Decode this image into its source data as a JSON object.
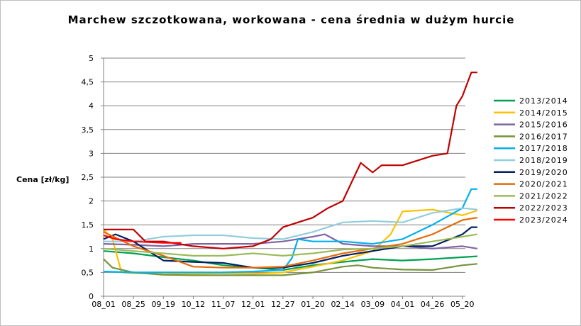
{
  "chart_data": {
    "type": "line",
    "title": "Marchew szczotkowana, workowana - cena średnia w dużym hurcie",
    "ylabel": "Cena [zł/kg]",
    "xlabel": "",
    "ylim": [
      0,
      5
    ],
    "yticks": [
      "0",
      "0,5",
      "1",
      "1,5",
      "2",
      "2,5",
      "3",
      "3,5",
      "4",
      "4,5",
      "5"
    ],
    "xticks": [
      "08_01",
      "08_25",
      "09_19",
      "10_12",
      "11_07",
      "12_01",
      "12_27",
      "01_20",
      "02_14",
      "03_09",
      "04_01",
      "04_26",
      "05_20"
    ],
    "grid": "horizontal",
    "legend_position": "right",
    "series": [
      {
        "name": "2013/2014",
        "color": "#00a050",
        "points": [
          [
            0,
            0.95
          ],
          [
            1,
            0.9
          ],
          [
            2,
            0.82
          ],
          [
            3,
            0.75
          ],
          [
            4,
            0.65
          ],
          [
            5,
            0.6
          ],
          [
            6,
            0.55
          ],
          [
            7,
            0.65
          ],
          [
            8,
            0.72
          ],
          [
            9,
            0.78
          ],
          [
            10,
            0.75
          ],
          [
            11,
            0.78
          ],
          [
            12,
            0.82
          ],
          [
            12.5,
            0.84
          ]
        ]
      },
      {
        "name": "2014/2015",
        "color": "#ffc000",
        "points": [
          [
            0,
            1.4
          ],
          [
            0.3,
            1.2
          ],
          [
            0.6,
            0.5
          ],
          [
            1,
            0.48
          ],
          [
            2,
            0.48
          ],
          [
            3,
            0.47
          ],
          [
            4,
            0.48
          ],
          [
            5,
            0.47
          ],
          [
            6,
            0.5
          ],
          [
            7,
            0.62
          ],
          [
            8,
            0.75
          ],
          [
            9,
            0.95
          ],
          [
            9.6,
            1.3
          ],
          [
            10,
            1.78
          ],
          [
            11,
            1.82
          ],
          [
            12,
            1.7
          ],
          [
            12.5,
            1.8
          ]
        ]
      },
      {
        "name": "2015/2016",
        "color": "#8064a2",
        "points": [
          [
            0,
            1.1
          ],
          [
            1,
            1.08
          ],
          [
            2,
            1.05
          ],
          [
            3,
            1.1
          ],
          [
            4,
            1.1
          ],
          [
            5,
            1.1
          ],
          [
            6,
            1.15
          ],
          [
            7,
            1.25
          ],
          [
            7.4,
            1.3
          ],
          [
            8,
            1.1
          ],
          [
            9,
            1.05
          ],
          [
            10,
            1.05
          ],
          [
            11,
            1.0
          ],
          [
            12,
            1.05
          ],
          [
            12.5,
            1.0
          ]
        ]
      },
      {
        "name": "2016/2017",
        "color": "#77933c",
        "points": [
          [
            0,
            0.78
          ],
          [
            0.3,
            0.6
          ],
          [
            1,
            0.5
          ],
          [
            2,
            0.45
          ],
          [
            3,
            0.44
          ],
          [
            4,
            0.44
          ],
          [
            5,
            0.44
          ],
          [
            6,
            0.44
          ],
          [
            7,
            0.5
          ],
          [
            8,
            0.62
          ],
          [
            8.5,
            0.65
          ],
          [
            9,
            0.6
          ],
          [
            10,
            0.56
          ],
          [
            11,
            0.55
          ],
          [
            12,
            0.65
          ],
          [
            12.5,
            0.68
          ]
        ]
      },
      {
        "name": "2017/2018",
        "color": "#00b0f0",
        "points": [
          [
            0,
            0.52
          ],
          [
            1,
            0.5
          ],
          [
            2,
            0.5
          ],
          [
            3,
            0.5
          ],
          [
            4,
            0.5
          ],
          [
            5,
            0.52
          ],
          [
            6,
            0.55
          ],
          [
            6.3,
            0.8
          ],
          [
            6.5,
            1.2
          ],
          [
            7,
            1.15
          ],
          [
            8,
            1.15
          ],
          [
            9,
            1.1
          ],
          [
            10,
            1.2
          ],
          [
            11,
            1.5
          ],
          [
            12,
            1.85
          ],
          [
            12.3,
            2.25
          ],
          [
            12.5,
            2.25
          ]
        ]
      },
      {
        "name": "2018/2019",
        "color": "#92cddc",
        "points": [
          [
            0,
            1.15
          ],
          [
            1,
            1.15
          ],
          [
            2,
            1.25
          ],
          [
            3,
            1.28
          ],
          [
            4,
            1.28
          ],
          [
            5,
            1.22
          ],
          [
            6,
            1.2
          ],
          [
            7,
            1.35
          ],
          [
            8,
            1.55
          ],
          [
            9,
            1.58
          ],
          [
            10,
            1.55
          ],
          [
            11,
            1.75
          ],
          [
            12,
            1.85
          ],
          [
            12.5,
            1.82
          ]
        ]
      },
      {
        "name": "2019/2020",
        "color": "#002060",
        "points": [
          [
            0,
            1.2
          ],
          [
            0.4,
            1.3
          ],
          [
            1,
            1.15
          ],
          [
            1.5,
            0.95
          ],
          [
            2,
            0.75
          ],
          [
            3,
            0.72
          ],
          [
            4,
            0.7
          ],
          [
            5,
            0.6
          ],
          [
            6,
            0.6
          ],
          [
            7,
            0.7
          ],
          [
            8,
            0.85
          ],
          [
            9,
            0.95
          ],
          [
            10,
            1.05
          ],
          [
            11,
            1.05
          ],
          [
            12,
            1.3
          ],
          [
            12.3,
            1.45
          ],
          [
            12.5,
            1.45
          ]
        ]
      },
      {
        "name": "2020/2021",
        "color": "#e46c0a",
        "points": [
          [
            0,
            1.35
          ],
          [
            1,
            1.05
          ],
          [
            2,
            0.85
          ],
          [
            3,
            0.62
          ],
          [
            4,
            0.6
          ],
          [
            5,
            0.6
          ],
          [
            6,
            0.62
          ],
          [
            7,
            0.75
          ],
          [
            8,
            0.9
          ],
          [
            9,
            1.0
          ],
          [
            10,
            1.1
          ],
          [
            11,
            1.3
          ],
          [
            12,
            1.6
          ],
          [
            12.5,
            1.65
          ]
        ]
      },
      {
        "name": "2021/2022",
        "color": "#9bbb59",
        "points": [
          [
            0,
            1.0
          ],
          [
            1,
            0.95
          ],
          [
            2,
            0.9
          ],
          [
            3,
            0.85
          ],
          [
            4,
            0.85
          ],
          [
            5,
            0.9
          ],
          [
            6,
            0.85
          ],
          [
            7,
            0.9
          ],
          [
            8,
            0.98
          ],
          [
            9,
            1.0
          ],
          [
            10,
            1.05
          ],
          [
            11,
            1.15
          ],
          [
            12,
            1.25
          ],
          [
            12.5,
            1.3
          ]
        ]
      },
      {
        "name": "2022/2023",
        "color": "#c00000",
        "points": [
          [
            0,
            1.4
          ],
          [
            1,
            1.4
          ],
          [
            1.4,
            1.15
          ],
          [
            2,
            1.15
          ],
          [
            3,
            1.05
          ],
          [
            4,
            1.0
          ],
          [
            5,
            1.05
          ],
          [
            5.6,
            1.2
          ],
          [
            6,
            1.45
          ],
          [
            7,
            1.65
          ],
          [
            7.5,
            1.85
          ],
          [
            8,
            2.0
          ],
          [
            8.6,
            2.8
          ],
          [
            9,
            2.6
          ],
          [
            9.3,
            2.75
          ],
          [
            10,
            2.75
          ],
          [
            11,
            2.95
          ],
          [
            11.5,
            3.0
          ],
          [
            11.8,
            4.0
          ],
          [
            12,
            4.2
          ],
          [
            12.3,
            4.7
          ],
          [
            12.5,
            4.7
          ]
        ]
      },
      {
        "name": "2023/2024",
        "color": "#ff0000",
        "points": [
          [
            0,
            1.28
          ],
          [
            0.4,
            1.2
          ],
          [
            1,
            1.15
          ],
          [
            2,
            1.12
          ],
          [
            2.6,
            1.12
          ]
        ]
      }
    ]
  }
}
